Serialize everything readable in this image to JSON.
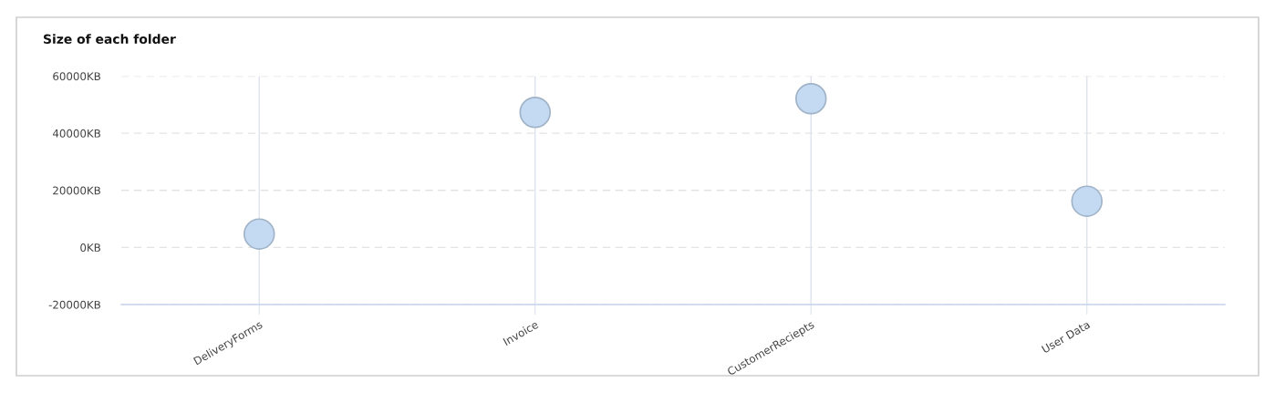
{
  "chart_data": {
    "type": "scatter",
    "title": "Size of each folder",
    "categories": [
      "DeliveryForms",
      "Invoice",
      "CustomerReciepts",
      "User Data"
    ],
    "values": [
      4700,
      47300,
      52100,
      16200
    ],
    "color": "#c4daf3",
    "marker": "circle",
    "ylim": [
      -20000,
      60000
    ],
    "yticks": [
      {
        "value": -20000,
        "label": "-20000KB"
      },
      {
        "value": 0,
        "label": "0KB"
      },
      {
        "value": 20000,
        "label": "20000KB"
      },
      {
        "value": 40000,
        "label": "40000KB"
      },
      {
        "value": 60000,
        "label": "60000KB"
      }
    ],
    "grid": true
  }
}
